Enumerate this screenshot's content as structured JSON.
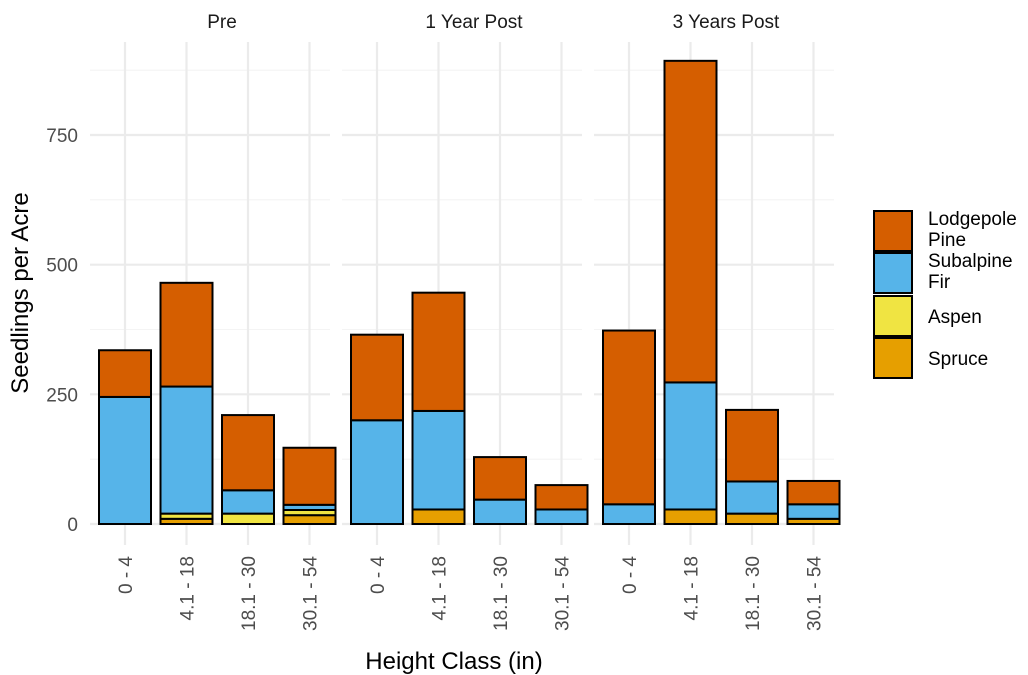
{
  "chart_data": {
    "type": "bar",
    "stacked": true,
    "facets": [
      "Pre",
      "1 Year Post",
      "3 Years Post"
    ],
    "categories": [
      "0 - 4",
      "4.1 - 18",
      "18.1 - 30",
      "30.1 - 54"
    ],
    "xlabel": "Height Class (in)",
    "ylabel": "Seedlings per Acre",
    "ylim": [
      0,
      920
    ],
    "yticks": [
      0,
      250,
      500,
      750
    ],
    "grid": true,
    "legend_position": "right",
    "legend_order": [
      "Lodgepole Pine",
      "Subalpine Fir",
      "Aspen",
      "Spruce"
    ],
    "legend_labels": [
      {
        "line1": "Lodgepole",
        "line2": "Pine"
      },
      {
        "line1": "Subalpine",
        "line2": "Fir"
      },
      {
        "line1": "Aspen",
        "line2": ""
      },
      {
        "line1": "Spruce",
        "line2": ""
      }
    ],
    "colors": {
      "Lodgepole Pine": "#D55E00",
      "Subalpine Fir": "#56B4E9",
      "Aspen": "#F0E442",
      "Spruce": "#E69F00"
    },
    "stack_order": [
      "Spruce",
      "Aspen",
      "Subalpine Fir",
      "Lodgepole Pine"
    ],
    "data": {
      "Pre": {
        "Spruce": [
          0,
          10,
          0,
          17
        ],
        "Aspen": [
          0,
          10,
          20,
          10
        ],
        "Subalpine Fir": [
          245,
          245,
          45,
          10
        ],
        "Lodgepole Pine": [
          90,
          200,
          145,
          110
        ]
      },
      "1 Year Post": {
        "Spruce": [
          0,
          28,
          0,
          0
        ],
        "Aspen": [
          0,
          0,
          0,
          0
        ],
        "Subalpine Fir": [
          200,
          190,
          47,
          28
        ],
        "Lodgepole Pine": [
          165,
          228,
          82,
          47
        ]
      },
      "3 Years Post": {
        "Spruce": [
          0,
          28,
          20,
          10
        ],
        "Aspen": [
          0,
          0,
          0,
          0
        ],
        "Subalpine Fir": [
          38,
          245,
          62,
          28
        ],
        "Lodgepole Pine": [
          335,
          620,
          138,
          45
        ]
      }
    }
  }
}
